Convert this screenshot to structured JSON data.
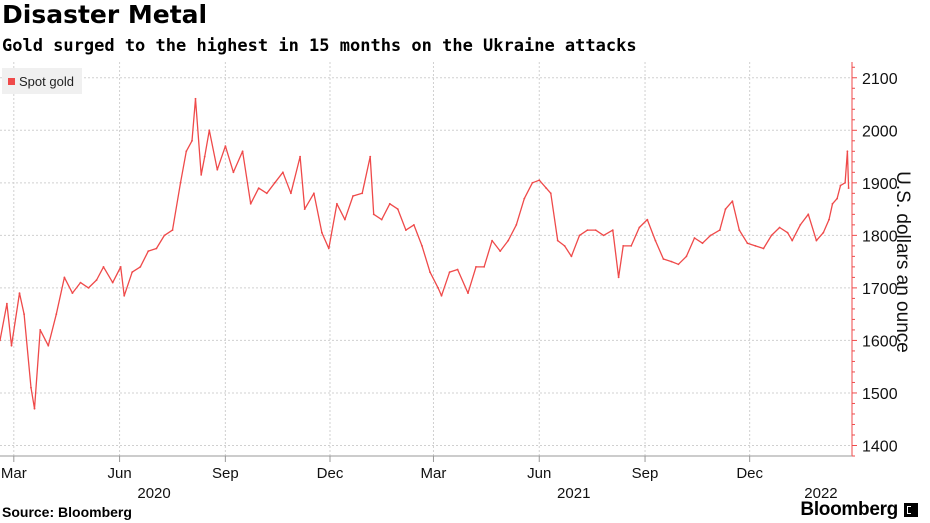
{
  "header": {
    "title": "Disaster Metal",
    "subtitle": "Gold surged to the highest in 15 months on the Ukraine attacks"
  },
  "legend": {
    "label": "Spot gold",
    "icon": "legend-swatch-icon"
  },
  "footer": {
    "source": "Source: Bloomberg",
    "brand": "Bloomberg",
    "brand_icon": "bloomberg-terminal-icon"
  },
  "colors": {
    "series": "#ef4a4a",
    "grid": "#d0d0d0",
    "axis": "#ef4a4a",
    "text": "#000000"
  },
  "chart_data": {
    "type": "line",
    "title": "Disaster Metal",
    "subtitle": "Gold surged to the highest in 15 months on the Ukraine attacks",
    "xlabel": "",
    "ylabel": "U.S. dollars an ounce",
    "ylim": [
      1380,
      2130
    ],
    "yticks": [
      1400,
      1500,
      1600,
      1700,
      1800,
      1900,
      2000,
      2100
    ],
    "x_range": [
      "2020-02-18",
      "2022-02-28"
    ],
    "x_ticks": [
      {
        "label": "Mar",
        "date": "2020-03-01"
      },
      {
        "label": "Jun",
        "date": "2020-06-01"
      },
      {
        "label": "Sep",
        "date": "2020-09-01"
      },
      {
        "label": "Dec",
        "date": "2020-12-01"
      },
      {
        "label": "Mar",
        "date": "2021-03-01"
      },
      {
        "label": "Jun",
        "date": "2021-06-01"
      },
      {
        "label": "Sep",
        "date": "2021-09-01"
      },
      {
        "label": "Dec",
        "date": "2021-12-01"
      }
    ],
    "year_labels": [
      {
        "label": "2020",
        "date": "2020-07-01"
      },
      {
        "label": "2021",
        "date": "2021-07-01"
      },
      {
        "label": "2022",
        "date": "2022-02-01"
      }
    ],
    "grid": true,
    "legend_position": "top-left",
    "series": [
      {
        "name": "Spot gold",
        "color": "#ef4a4a",
        "points": [
          [
            "2020-02-18",
            1600
          ],
          [
            "2020-02-24",
            1670
          ],
          [
            "2020-02-28",
            1590
          ],
          [
            "2020-03-06",
            1690
          ],
          [
            "2020-03-10",
            1650
          ],
          [
            "2020-03-16",
            1510
          ],
          [
            "2020-03-19",
            1470
          ],
          [
            "2020-03-24",
            1620
          ],
          [
            "2020-03-31",
            1590
          ],
          [
            "2020-04-07",
            1650
          ],
          [
            "2020-04-14",
            1720
          ],
          [
            "2020-04-21",
            1690
          ],
          [
            "2020-04-28",
            1710
          ],
          [
            "2020-05-05",
            1700
          ],
          [
            "2020-05-12",
            1715
          ],
          [
            "2020-05-18",
            1740
          ],
          [
            "2020-05-26",
            1710
          ],
          [
            "2020-06-02",
            1740
          ],
          [
            "2020-06-05",
            1685
          ],
          [
            "2020-06-12",
            1730
          ],
          [
            "2020-06-19",
            1740
          ],
          [
            "2020-06-26",
            1770
          ],
          [
            "2020-07-03",
            1775
          ],
          [
            "2020-07-10",
            1800
          ],
          [
            "2020-07-17",
            1810
          ],
          [
            "2020-07-24",
            1900
          ],
          [
            "2020-07-29",
            1960
          ],
          [
            "2020-08-03",
            1980
          ],
          [
            "2020-08-06",
            2060
          ],
          [
            "2020-08-11",
            1915
          ],
          [
            "2020-08-14",
            1950
          ],
          [
            "2020-08-18",
            2000
          ],
          [
            "2020-08-25",
            1925
          ],
          [
            "2020-09-01",
            1970
          ],
          [
            "2020-09-08",
            1920
          ],
          [
            "2020-09-16",
            1960
          ],
          [
            "2020-09-23",
            1860
          ],
          [
            "2020-09-30",
            1890
          ],
          [
            "2020-10-07",
            1880
          ],
          [
            "2020-10-14",
            1900
          ],
          [
            "2020-10-21",
            1920
          ],
          [
            "2020-10-28",
            1880
          ],
          [
            "2020-11-05",
            1950
          ],
          [
            "2020-11-09",
            1850
          ],
          [
            "2020-11-17",
            1880
          ],
          [
            "2020-11-24",
            1805
          ],
          [
            "2020-11-30",
            1775
          ],
          [
            "2020-12-07",
            1860
          ],
          [
            "2020-12-14",
            1830
          ],
          [
            "2020-12-21",
            1875
          ],
          [
            "2020-12-29",
            1880
          ],
          [
            "2021-01-05",
            1950
          ],
          [
            "2021-01-08",
            1840
          ],
          [
            "2021-01-15",
            1830
          ],
          [
            "2021-01-22",
            1860
          ],
          [
            "2021-01-29",
            1850
          ],
          [
            "2021-02-05",
            1810
          ],
          [
            "2021-02-12",
            1820
          ],
          [
            "2021-02-19",
            1780
          ],
          [
            "2021-02-26",
            1730
          ],
          [
            "2021-03-05",
            1700
          ],
          [
            "2021-03-08",
            1685
          ],
          [
            "2021-03-15",
            1730
          ],
          [
            "2021-03-22",
            1735
          ],
          [
            "2021-03-31",
            1690
          ],
          [
            "2021-04-07",
            1740
          ],
          [
            "2021-04-14",
            1740
          ],
          [
            "2021-04-21",
            1790
          ],
          [
            "2021-04-28",
            1770
          ],
          [
            "2021-05-05",
            1790
          ],
          [
            "2021-05-12",
            1820
          ],
          [
            "2021-05-19",
            1870
          ],
          [
            "2021-05-26",
            1900
          ],
          [
            "2021-06-01",
            1905
          ],
          [
            "2021-06-07",
            1890
          ],
          [
            "2021-06-11",
            1880
          ],
          [
            "2021-06-17",
            1790
          ],
          [
            "2021-06-23",
            1780
          ],
          [
            "2021-06-29",
            1760
          ],
          [
            "2021-07-06",
            1800
          ],
          [
            "2021-07-13",
            1810
          ],
          [
            "2021-07-20",
            1810
          ],
          [
            "2021-07-27",
            1800
          ],
          [
            "2021-08-04",
            1810
          ],
          [
            "2021-08-09",
            1720
          ],
          [
            "2021-08-13",
            1780
          ],
          [
            "2021-08-20",
            1780
          ],
          [
            "2021-08-27",
            1815
          ],
          [
            "2021-09-03",
            1830
          ],
          [
            "2021-09-10",
            1790
          ],
          [
            "2021-09-17",
            1755
          ],
          [
            "2021-09-24",
            1750
          ],
          [
            "2021-09-30",
            1745
          ],
          [
            "2021-10-07",
            1760
          ],
          [
            "2021-10-14",
            1795
          ],
          [
            "2021-10-21",
            1785
          ],
          [
            "2021-10-28",
            1800
          ],
          [
            "2021-11-05",
            1810
          ],
          [
            "2021-11-10",
            1850
          ],
          [
            "2021-11-16",
            1865
          ],
          [
            "2021-11-22",
            1810
          ],
          [
            "2021-11-29",
            1785
          ],
          [
            "2021-12-06",
            1780
          ],
          [
            "2021-12-13",
            1775
          ],
          [
            "2021-12-20",
            1800
          ],
          [
            "2021-12-27",
            1815
          ],
          [
            "2022-01-03",
            1805
          ],
          [
            "2022-01-07",
            1790
          ],
          [
            "2022-01-14",
            1820
          ],
          [
            "2022-01-21",
            1840
          ],
          [
            "2022-01-28",
            1790
          ],
          [
            "2022-02-03",
            1805
          ],
          [
            "2022-02-08",
            1830
          ],
          [
            "2022-02-11",
            1860
          ],
          [
            "2022-02-15",
            1870
          ],
          [
            "2022-02-18",
            1895
          ],
          [
            "2022-02-22",
            1900
          ],
          [
            "2022-02-24",
            1960
          ],
          [
            "2022-02-25",
            1890
          ]
        ]
      }
    ]
  }
}
